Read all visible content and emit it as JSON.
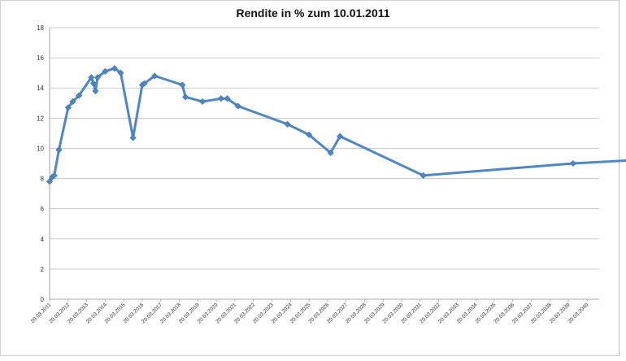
{
  "chart_data": {
    "type": "line",
    "title": "Rendite in % zum 10.01.2011",
    "xlabel": "",
    "ylabel": "",
    "ylim": [
      0,
      18
    ],
    "yticks": [
      0,
      2,
      4,
      6,
      8,
      10,
      12,
      14,
      16,
      18
    ],
    "grid": true,
    "legend": "none",
    "colors": {
      "line": "#4f86c6",
      "marker": "#4f86c6",
      "grid": "#bfbfbf"
    },
    "xlim": [
      "20.03.2011",
      "20.03.2040"
    ],
    "x_tick_labels": [
      "20.03.2011",
      "20.03.2012",
      "20.03.2013",
      "20.03.2014",
      "20.03.2015",
      "20.03.2016",
      "20.03.2017",
      "20.03.2018",
      "20.03.2019",
      "20.03.2020",
      "20.03.2021",
      "20.03.2022",
      "20.03.2023",
      "20.03.2024",
      "20.03.2025",
      "20.03.2026",
      "20.03.2027",
      "20.03.2028",
      "20.03.2029",
      "20.03.2030",
      "20.03.2031",
      "20.03.2032",
      "20.03.2033",
      "20.03.2034",
      "20.03.2035",
      "20.03.2036",
      "20.03.2037",
      "20.03.2038",
      "20.03.2039",
      "20.03.2040"
    ],
    "series": [
      {
        "points": [
          {
            "x": "2011-03-20",
            "y": 7.8
          },
          {
            "x": "2011-05-10",
            "y": 8.1
          },
          {
            "x": "2011-06-20",
            "y": 8.2
          },
          {
            "x": "2011-09-20",
            "y": 9.9
          },
          {
            "x": "2012-03-20",
            "y": 12.7
          },
          {
            "x": "2012-06-20",
            "y": 13.1
          },
          {
            "x": "2012-10-20",
            "y": 13.5
          },
          {
            "x": "2013-06-20",
            "y": 14.7
          },
          {
            "x": "2013-08-01",
            "y": 14.3
          },
          {
            "x": "2013-09-10",
            "y": 13.8
          },
          {
            "x": "2013-10-20",
            "y": 14.7
          },
          {
            "x": "2014-03-20",
            "y": 15.1
          },
          {
            "x": "2014-09-20",
            "y": 15.3
          },
          {
            "x": "2015-01-20",
            "y": 15.0
          },
          {
            "x": "2015-09-20",
            "y": 10.7
          },
          {
            "x": "2016-03-20",
            "y": 14.2
          },
          {
            "x": "2016-05-01",
            "y": 14.3
          },
          {
            "x": "2016-11-20",
            "y": 14.8
          },
          {
            "x": "2018-05-20",
            "y": 14.2
          },
          {
            "x": "2018-07-20",
            "y": 13.4
          },
          {
            "x": "2019-06-20",
            "y": 13.1
          },
          {
            "x": "2020-06-20",
            "y": 13.3
          },
          {
            "x": "2020-10-20",
            "y": 13.3
          },
          {
            "x": "2021-05-20",
            "y": 12.8
          },
          {
            "x": "2024-01-20",
            "y": 11.6
          },
          {
            "x": "2025-03-20",
            "y": 10.9
          },
          {
            "x": "2026-05-20",
            "y": 9.7
          },
          {
            "x": "2026-11-20",
            "y": 10.8
          },
          {
            "x": "2031-05-20",
            "y": 8.2
          },
          {
            "x": "2039-06-20",
            "y": 9.0
          },
          {
            "x": "2042-06-20",
            "y": 9.2
          }
        ]
      }
    ]
  }
}
